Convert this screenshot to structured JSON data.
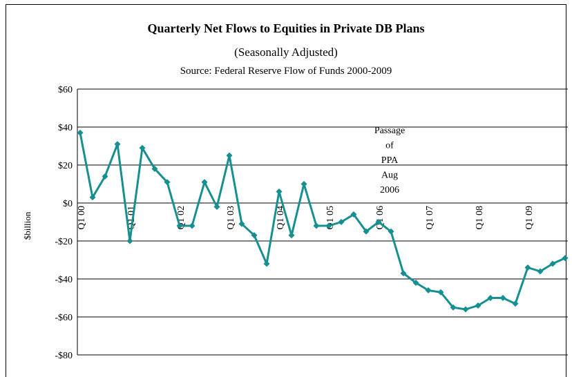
{
  "colors": {
    "series": "#158f8f",
    "grid": "#000000",
    "frame": "#000000"
  },
  "chart_data": {
    "type": "line",
    "title": "Quarterly Net Flows to Equities in Private DB Plans",
    "subtitle": "(Seasonally Adjusted)",
    "source": "Source: Federal Reserve Flow of Funds 2000-2009",
    "ylabel": "$billion",
    "xlabel": "",
    "ylim": [
      -80,
      60
    ],
    "yticks": [
      60,
      40,
      20,
      0,
      -20,
      -40,
      -60,
      -80
    ],
    "ytick_labels": [
      "$60",
      "$40",
      "$20",
      "$0",
      "-$20",
      "-$40",
      "-$60",
      "-$80"
    ],
    "grid": true,
    "legend": "none",
    "x_tick_labels": [
      "Q1 00",
      "Q1 01",
      "Q1 02",
      "Q1 03",
      "Q1 04",
      "Q1 05",
      "Q1 06",
      "Q1 07",
      "Q1 08",
      "Q1 09"
    ],
    "x_tick_positions": [
      0,
      4,
      8,
      12,
      16,
      20,
      24,
      28,
      32,
      36
    ],
    "annotation": {
      "lines": [
        "Passage",
        "of",
        "PPA",
        "Aug",
        "2006"
      ],
      "x_index": 25
    },
    "series": [
      {
        "quarters": [
          "Q1 00",
          "Q2 00",
          "Q3 00",
          "Q4 00",
          "Q1 01",
          "Q2 01",
          "Q3 01",
          "Q4 01",
          "Q1 02",
          "Q2 02",
          "Q3 02",
          "Q4 02",
          "Q1 03",
          "Q2 03",
          "Q3 03",
          "Q4 03",
          "Q1 04",
          "Q2 04",
          "Q3 04",
          "Q4 04",
          "Q1 05",
          "Q2 05",
          "Q3 05",
          "Q4 05",
          "Q1 06",
          "Q2 06",
          "Q3 06",
          "Q4 06",
          "Q1 07",
          "Q2 07",
          "Q3 07",
          "Q4 07",
          "Q1 08",
          "Q2 08",
          "Q3 08",
          "Q4 08",
          "Q1 09",
          "Q2 09",
          "Q3 09",
          "Q4 09"
        ],
        "values": [
          37,
          3,
          14,
          31,
          -20,
          29,
          18,
          11,
          -12,
          -12,
          11,
          -2,
          25,
          -11,
          -17,
          -32,
          6,
          -17,
          10,
          -12,
          -12,
          -10,
          -6,
          -15,
          -10,
          -15,
          -37,
          -42,
          -46,
          -47,
          -55,
          -56,
          -54,
          -50,
          -50,
          -53,
          -34,
          -36,
          -32,
          -29
        ]
      }
    ]
  }
}
